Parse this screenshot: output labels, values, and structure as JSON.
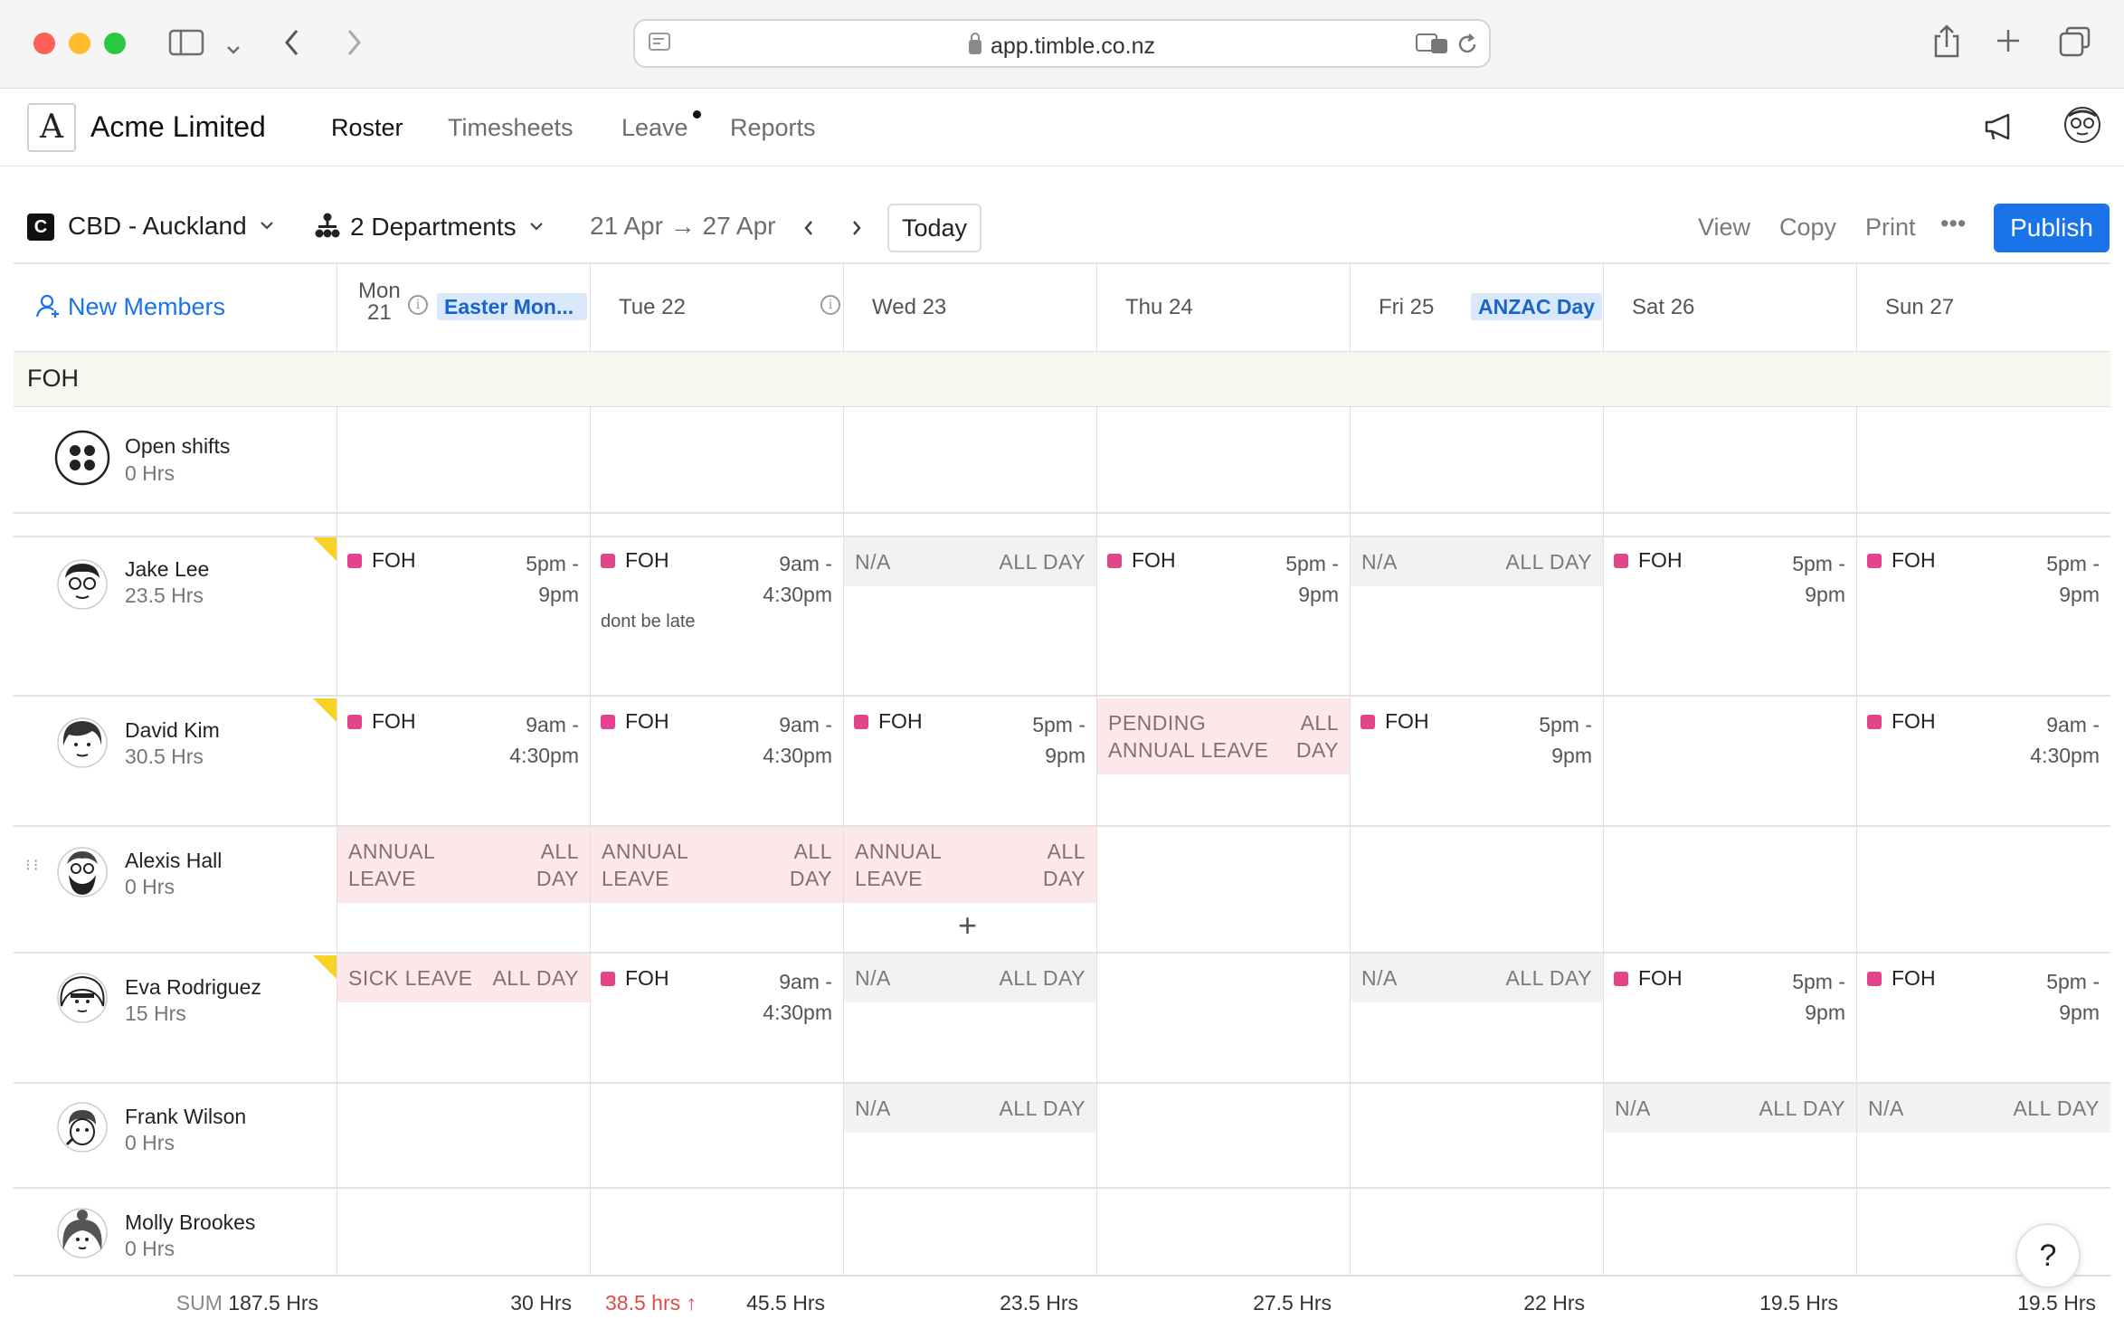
{
  "browser": {
    "url": "app.timble.co.nz"
  },
  "app": {
    "logo_letter": "A",
    "company": "Acme Limited",
    "nav": [
      {
        "label": "Roster",
        "active": true
      },
      {
        "label": "Timesheets",
        "active": false
      },
      {
        "label": "Leave",
        "active": false,
        "dot": true
      },
      {
        "label": "Reports",
        "active": false
      }
    ]
  },
  "toolbar": {
    "location_badge": "C",
    "location": "CBD - Auckland",
    "departments": "2 Departments",
    "date_range": "21 Apr → 27 Apr",
    "today": "Today",
    "view": "View",
    "copy": "Copy",
    "print": "Print",
    "more": "•••",
    "publish": "Publish",
    "accent_color": "#1a73e8"
  },
  "grid": {
    "new_members": "New Members",
    "days": [
      {
        "label_top": "Mon",
        "label_bottom": "21",
        "holiday": "Easter Mon...",
        "info": true
      },
      {
        "label": "Tue 22",
        "info": true
      },
      {
        "label": "Wed 23"
      },
      {
        "label": "Thu 24"
      },
      {
        "label": "Fri 25",
        "holiday": "ANZAC Day"
      },
      {
        "label": "Sat 26"
      },
      {
        "label": "Sun 27"
      }
    ],
    "section": "FOH",
    "open_shifts": {
      "name": "Open shifts",
      "hours": "0 Hrs"
    },
    "employees": [
      {
        "name": "Jake Lee",
        "hours": "23.5 Hrs"
      },
      {
        "name": "David Kim",
        "hours": "30.5 Hrs"
      },
      {
        "name": "Alexis Hall",
        "hours": "0 Hrs"
      },
      {
        "name": "Eva Rodriguez",
        "hours": "15 Hrs"
      },
      {
        "name": "Frank Wilson",
        "hours": "0 Hrs"
      },
      {
        "name": "Molly Brookes",
        "hours": "0 Hrs"
      }
    ],
    "labels": {
      "dept": "FOH",
      "na": "N/A",
      "all_day": "ALL DAY",
      "all": "ALL",
      "day": "DAY",
      "annual": "ANNUAL",
      "leave": "LEAVE",
      "pending": "PENDING",
      "annual_leave": "ANNUAL LEAVE",
      "sick_leave": "SICK LEAVE",
      "t_5pm": "5pm -",
      "t_9pm": "9pm",
      "t_9am": "9am -",
      "t_430": "4:30pm",
      "note": "dont be late",
      "plus": "+"
    },
    "shift_color": "#e2438a",
    "leave_color": "#fce8ea"
  },
  "footer": {
    "sum_label": "SUM",
    "sum_value": "187.5 Hrs",
    "days": [
      "30 Hrs",
      "45.5 Hrs",
      "23.5 Hrs",
      "27.5 Hrs",
      "22 Hrs",
      "19.5 Hrs",
      "19.5 Hrs"
    ],
    "overtime": "38.5 hrs",
    "overtime_arrow": "↑"
  },
  "help": "?"
}
